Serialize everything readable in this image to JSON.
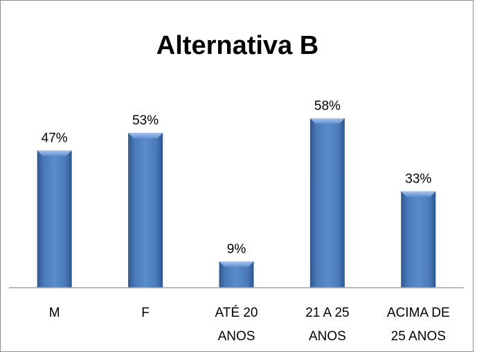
{
  "chart_data": {
    "type": "bar",
    "title": "Alternativa B",
    "categories": [
      [
        "M"
      ],
      [
        "F"
      ],
      [
        "ATÉ 20",
        "ANOS"
      ],
      [
        "21 A 25",
        "ANOS"
      ],
      [
        "ACIMA DE",
        "25 ANOS"
      ]
    ],
    "values": [
      47,
      53,
      9,
      58,
      33
    ],
    "value_labels": [
      "47%",
      "53%",
      "9%",
      "58%",
      "33%"
    ],
    "ylim": [
      0,
      100
    ],
    "grid": false,
    "legend": "none",
    "colors": {
      "bar_main": "#4a79b8",
      "bar_dark": "#2d5690",
      "bar_light": "#8fb3e3",
      "axis": "#a6a6a6"
    }
  }
}
